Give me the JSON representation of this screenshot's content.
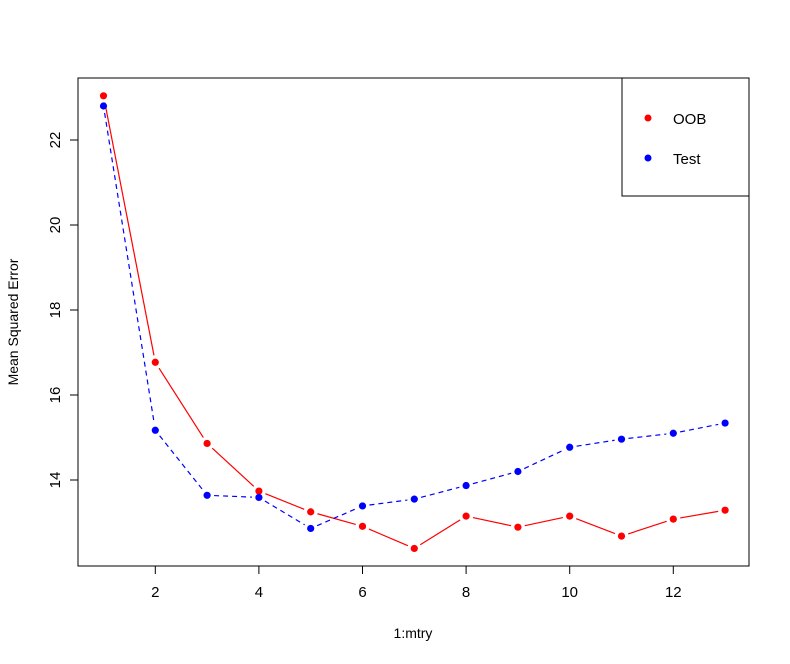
{
  "chart_data": {
    "type": "line",
    "title": "",
    "xlabel": "1:mtry",
    "ylabel": "Mean Squared Error",
    "x": [
      1,
      2,
      3,
      4,
      5,
      6,
      7,
      8,
      9,
      10,
      11,
      12,
      13
    ],
    "series": [
      {
        "name": "OOB",
        "color": "#ff0000",
        "line_style": "solid",
        "marker": "filled-circle",
        "values": [
          23.04,
          16.77,
          14.86,
          13.74,
          13.25,
          12.91,
          12.39,
          13.15,
          12.89,
          13.15,
          12.68,
          13.08,
          13.29
        ]
      },
      {
        "name": "Test",
        "color": "#0000ff",
        "line_style": "dashed",
        "marker": "filled-circle",
        "values": [
          22.8,
          15.17,
          13.64,
          13.59,
          12.86,
          13.39,
          13.55,
          13.87,
          14.2,
          14.77,
          14.96,
          15.1,
          15.34
        ]
      }
    ],
    "xticks": [
      "2",
      "4",
      "6",
      "8",
      "10",
      "12"
    ],
    "yticks": [
      "14",
      "16",
      "18",
      "20",
      "22"
    ],
    "xlim": [
      0.5,
      13.5
    ],
    "ylim": [
      12.0,
      23.5
    ],
    "grid": false,
    "legend_position": "top-right"
  },
  "legend": {
    "items": [
      {
        "label": "OOB",
        "color": "#ff0000"
      },
      {
        "label": "Test",
        "color": "#0000ff"
      }
    ]
  }
}
